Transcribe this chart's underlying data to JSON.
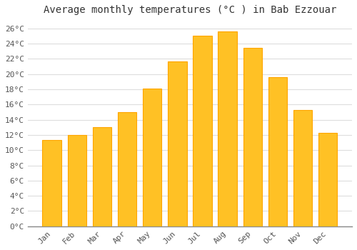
{
  "title": "Average monthly temperatures (°C ) in Bab Ezzouar",
  "months": [
    "Jan",
    "Feb",
    "Mar",
    "Apr",
    "May",
    "Jun",
    "Jul",
    "Aug",
    "Sep",
    "Oct",
    "Nov",
    "Dec"
  ],
  "values": [
    11.3,
    12.0,
    13.0,
    15.0,
    18.1,
    21.7,
    25.0,
    25.6,
    23.4,
    19.6,
    15.3,
    12.3
  ],
  "bar_color_face": "#FFC125",
  "bar_color_edge": "#FFA500",
  "background_color": "#FFFFFF",
  "grid_color": "#DDDDDD",
  "ylim": [
    0,
    27
  ],
  "ytick_step": 2,
  "title_fontsize": 10,
  "tick_fontsize": 8,
  "font_family": "monospace"
}
